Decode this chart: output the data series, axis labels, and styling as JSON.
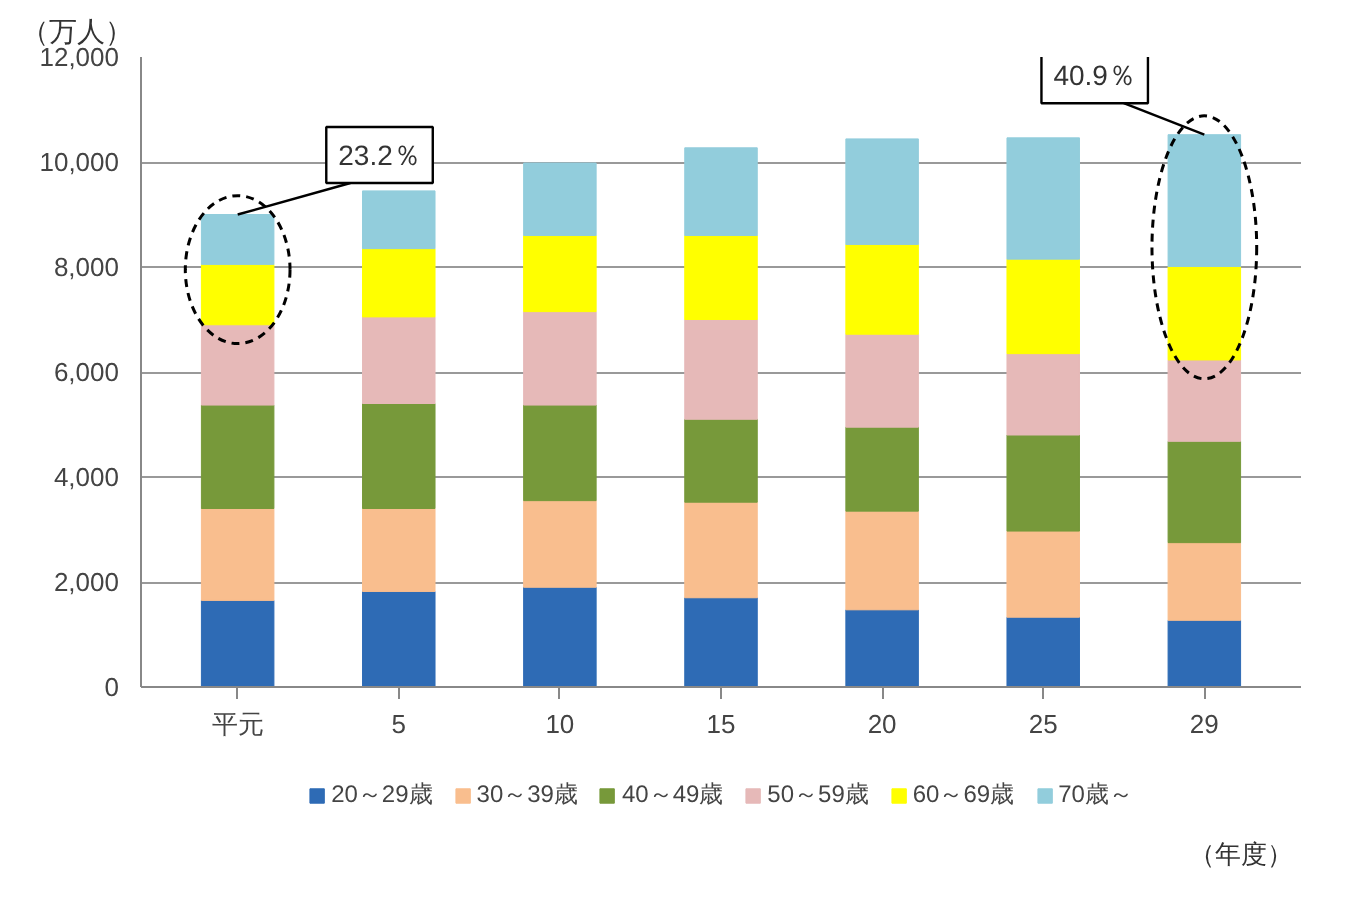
{
  "chart_data": {
    "type": "bar",
    "stacked": true,
    "ylabel": "（万人）",
    "xlabel": "（年度）",
    "categories": [
      "平元",
      "5",
      "10",
      "15",
      "20",
      "25",
      "29"
    ],
    "series": [
      {
        "name": "20～29歳",
        "color": "#2e6bb5",
        "values": [
          1650,
          1820,
          1900,
          1700,
          1470,
          1330,
          1270
        ]
      },
      {
        "name": "30～39歳",
        "color": "#f9be8e",
        "values": [
          1750,
          1580,
          1650,
          1820,
          1880,
          1640,
          1480
        ]
      },
      {
        "name": "40～49歳",
        "color": "#77993a",
        "values": [
          1970,
          2000,
          1820,
          1580,
          1600,
          1830,
          1930
        ]
      },
      {
        "name": "50～59歳",
        "color": "#e6b9b8",
        "values": [
          1530,
          1650,
          1780,
          1900,
          1770,
          1550,
          1550
        ]
      },
      {
        "name": "60～69歳",
        "color": "#ffff00",
        "values": [
          1150,
          1300,
          1450,
          1600,
          1710,
          1800,
          1780
        ]
      },
      {
        "name": "70歳～",
        "color": "#92cddc",
        "values": [
          950,
          1100,
          1380,
          1670,
          2010,
          2310,
          2510
        ]
      }
    ],
    "ylim": [
      0,
      12000
    ],
    "yticks": [
      0,
      {
        "value": 2000,
        "label": "2,000"
      },
      {
        "value": 4000,
        "label": "4,000"
      },
      {
        "value": 6000,
        "label": "6,000"
      },
      {
        "value": 8000,
        "label": "8,000"
      },
      {
        "value": 10000,
        "label": "10,000"
      },
      {
        "value": 12000,
        "label": "12,000"
      }
    ],
    "grid": "y",
    "legend": "bottom",
    "annotations": [
      {
        "text": "23.2％",
        "x": "平元",
        "y": 9000
      },
      {
        "text": "40.9％",
        "x": "29",
        "y": 10520
      }
    ]
  }
}
